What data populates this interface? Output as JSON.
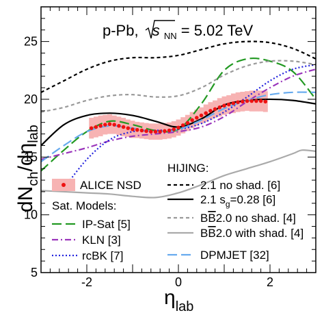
{
  "chart_data": {
    "type": "line",
    "title": "p-Pb, √s_NN = 5.02 TeV",
    "title_parts": {
      "prefix": "p-Pb, ",
      "sqrt_arg": "s",
      "sub": "NN",
      "suffix": " = 5.02 TeV"
    },
    "xlabel": {
      "main": "η",
      "sub": "lab"
    },
    "ylabel": {
      "main": "dN",
      "sub1": "ch",
      "mid": "/dη",
      "sub2": "lab"
    },
    "xlim": [
      -3,
      3
    ],
    "ylim": [
      5,
      28
    ],
    "xticks": [
      "-2",
      "0",
      "2"
    ],
    "yticks": [
      "5",
      "10",
      "15",
      "20",
      "25"
    ],
    "grid": false,
    "legend_placement": "bottom",
    "data_series": {
      "name": "ALICE NSD",
      "marker_color": "#ee1111",
      "band_color": "#f7b3b3",
      "x": [
        -1.9,
        -1.8,
        -1.7,
        -1.6,
        -1.5,
        -1.4,
        -1.3,
        -1.2,
        -1.1,
        -1.0,
        -0.9,
        -0.8,
        -0.7,
        -0.6,
        -0.5,
        -0.4,
        -0.3,
        -0.2,
        -0.1,
        0.0,
        0.1,
        0.2,
        0.3,
        0.4,
        0.5,
        0.6,
        0.7,
        0.8,
        0.9,
        1.0,
        1.1,
        1.2,
        1.3,
        1.4,
        1.5,
        1.6,
        1.7,
        1.8,
        1.9
      ],
      "y": [
        17.5,
        17.6,
        17.7,
        17.8,
        17.85,
        17.8,
        17.7,
        17.6,
        17.5,
        17.4,
        17.35,
        17.3,
        17.25,
        17.2,
        17.2,
        17.2,
        17.25,
        17.3,
        17.4,
        17.55,
        17.75,
        17.95,
        18.2,
        18.4,
        18.6,
        18.8,
        19.0,
        19.15,
        19.3,
        19.45,
        19.55,
        19.65,
        19.75,
        19.8,
        19.85,
        19.85,
        19.85,
        19.85,
        19.8
      ],
      "uncertainty": [
        0.9,
        0.9,
        0.9,
        0.85,
        0.85,
        0.8,
        0.8,
        0.8,
        0.75,
        0.75,
        0.7,
        0.7,
        0.7,
        0.7,
        0.7,
        0.7,
        0.7,
        0.7,
        0.7,
        0.7,
        0.7,
        0.7,
        0.7,
        0.7,
        0.7,
        0.75,
        0.75,
        0.75,
        0.8,
        0.8,
        0.8,
        0.85,
        0.85,
        0.85,
        0.85,
        0.9,
        0.9,
        0.9,
        0.9
      ]
    },
    "series": [
      {
        "name": "IP-Sat [5]",
        "color": "#229922",
        "style": "longdash",
        "x": [
          -3.0,
          -2.5,
          -2.0,
          -1.5,
          -1.0,
          -0.5,
          0.0,
          0.5,
          1.0,
          1.5,
          2.0,
          2.5,
          3.0
        ],
        "y": [
          13.8,
          15.6,
          17.2,
          18.1,
          17.8,
          17.3,
          17.4,
          19.6,
          22.5,
          23.5,
          23.3,
          22.4,
          20.0
        ]
      },
      {
        "name": "KLN [3]",
        "color": "#9933bb",
        "style": "dashdot",
        "x": [
          -3.0,
          -2.5,
          -2.0,
          -1.5,
          -1.0,
          -0.5,
          0.0,
          0.5,
          1.0,
          1.5,
          2.0,
          2.5,
          3.0
        ],
        "y": [
          14.8,
          15.3,
          15.8,
          16.4,
          16.8,
          17.0,
          17.2,
          17.6,
          18.5,
          19.8,
          21.0,
          22.0,
          22.6
        ]
      },
      {
        "name": "rcBK [7]",
        "color": "#2222dd",
        "style": "dotted",
        "x": [
          -2.5,
          -2.0,
          -1.5,
          -1.0,
          -0.5,
          0.0,
          0.5,
          1.0,
          1.5,
          2.0,
          2.5,
          3.0
        ],
        "y": [
          12.3,
          14.8,
          16.5,
          17.2,
          17.3,
          17.4,
          17.9,
          18.9,
          20.2,
          21.6,
          22.6,
          23.0
        ]
      },
      {
        "name": "2.1 no shad. [6]",
        "color": "#000000",
        "style": "shortdash",
        "x": [
          -3.0,
          -2.5,
          -2.0,
          -1.5,
          -1.0,
          -0.5,
          0.0,
          0.5,
          1.0,
          1.5,
          2.0,
          2.5,
          3.0
        ],
        "y": [
          20.6,
          21.6,
          22.6,
          23.3,
          23.6,
          23.6,
          23.8,
          24.3,
          24.8,
          25.0,
          24.9,
          24.4,
          23.5
        ]
      },
      {
        "name": "2.1 s_g=0.28 [6]",
        "color": "#000000",
        "style": "solid",
        "x": [
          -3.0,
          -2.5,
          -2.0,
          -1.5,
          -1.0,
          -0.5,
          0.0,
          0.5,
          1.0,
          1.5,
          2.0,
          2.5,
          3.0
        ],
        "y": [
          16.0,
          17.8,
          18.6,
          18.8,
          18.6,
          18.1,
          17.6,
          18.3,
          19.5,
          19.9,
          20.0,
          19.9,
          19.6
        ]
      },
      {
        "name": "BB̄2.0 no shad. [4]",
        "color": "#999999",
        "style": "shortdash",
        "x": [
          -3.0,
          -2.5,
          -2.0,
          -1.5,
          -1.0,
          -0.5,
          0.0,
          0.5,
          1.0,
          1.5,
          2.0,
          2.5,
          3.0
        ],
        "y": [
          18.9,
          19.3,
          19.9,
          20.3,
          20.4,
          20.2,
          20.3,
          21.0,
          22.1,
          22.9,
          23.3,
          23.3,
          23.0
        ]
      },
      {
        "name": "BB̄2.0 with shad. [4]",
        "color": "#aaaaaa",
        "style": "solid",
        "x": [
          -3.0,
          -2.5,
          -2.0,
          -1.5,
          -1.0,
          -0.5,
          0.0,
          0.5,
          1.0,
          1.5,
          2.0,
          2.5,
          2.7,
          3.0
        ],
        "y": [
          12.1,
          12.0,
          11.9,
          11.8,
          11.6,
          11.5,
          11.9,
          12.6,
          13.4,
          14.0,
          14.6,
          15.3,
          15.6,
          15.5
        ]
      },
      {
        "name": "DPMJET [32]",
        "color": "#66aaee",
        "style": "longdash",
        "x": [
          -3.0,
          -2.5,
          -2.0,
          -1.5,
          -1.0,
          -0.5,
          0.0,
          0.5,
          1.0,
          1.5,
          2.0,
          2.5,
          3.0
        ],
        "y": [
          14.6,
          16.0,
          17.2,
          17.7,
          17.5,
          17.2,
          17.4,
          18.2,
          19.2,
          19.9,
          20.4,
          20.6,
          20.6
        ]
      }
    ],
    "legend": {
      "data_label": "ALICE NSD",
      "sat_header": "Sat. Models:",
      "hijing_header": "HIJING:",
      "sat_items": [
        "IP-Sat [5]",
        "KLN [3]",
        "rcBK [7]"
      ],
      "hijing_items": [
        "2.1 no shad. [6]",
        "2.1 s",
        "g",
        "=0.28 [6]"
      ],
      "bb_items": [
        "2.0 no shad. [4]",
        "2.0 with shad. [4]"
      ],
      "dpmjet_item": "DPMJET [32]"
    }
  }
}
